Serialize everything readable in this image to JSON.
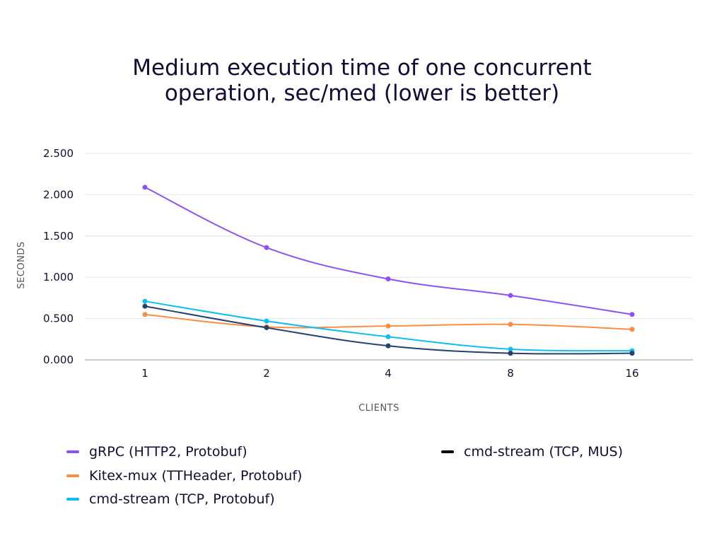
{
  "chart_data": {
    "type": "line",
    "title_lines": [
      "Medium execution time of one concurrent",
      "operation, sec/med (lower is better)"
    ],
    "xlabel": "CLIENTS",
    "ylabel": "SECONDS",
    "categories": [
      "1",
      "2",
      "4",
      "8",
      "16"
    ],
    "ylim": [
      0,
      2.5
    ],
    "yticks": [
      0,
      0.5,
      1,
      1.5,
      2,
      2.5
    ],
    "ytick_labels": [
      "0.000",
      "0.500",
      "1.000",
      "1.500",
      "2.000",
      "2.500"
    ],
    "grid": true,
    "legend_position": "bottom",
    "series": [
      {
        "name": "gRPC (HTTP2, Protobuf)",
        "color": "#8c52f5",
        "values": [
          2.09,
          1.36,
          0.98,
          0.78,
          0.55
        ]
      },
      {
        "name": "Kitex-mux (TTHeader, Protobuf)",
        "color": "#fc8d45",
        "values": [
          0.55,
          0.4,
          0.41,
          0.43,
          0.37
        ]
      },
      {
        "name": "cmd-stream (TCP, Protobuf)",
        "color": "#10bdf1",
        "values": [
          0.71,
          0.47,
          0.28,
          0.13,
          0.11
        ]
      },
      {
        "name": "cmd-stream (TCP, MUS)",
        "color": "#24426d",
        "legend_color": "#000000",
        "values": [
          0.65,
          0.39,
          0.17,
          0.08,
          0.08
        ]
      }
    ]
  }
}
